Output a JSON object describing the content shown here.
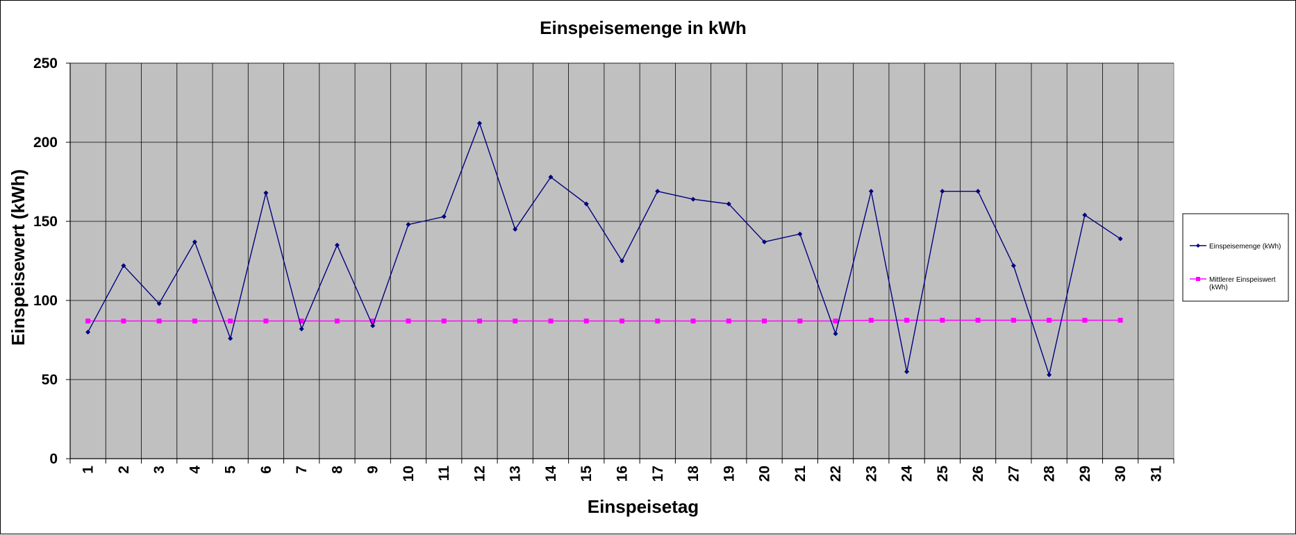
{
  "chart_data": {
    "type": "line",
    "title": "Einspeisemenge in kWh",
    "xlabel": "Einspeisetag",
    "ylabel": "Einspeisewert  (kWh)",
    "ylim": [
      0,
      250
    ],
    "yticks": [
      "0",
      "50",
      "100",
      "150",
      "200",
      "250"
    ],
    "categories": [
      "1",
      "2",
      "3",
      "4",
      "5",
      "6",
      "7",
      "8",
      "9",
      "10",
      "11",
      "12",
      "13",
      "14",
      "15",
      "16",
      "17",
      "18",
      "19",
      "20",
      "21",
      "22",
      "23",
      "24",
      "25",
      "26",
      "27",
      "28",
      "29",
      "30",
      "31"
    ],
    "grid": "on",
    "plot_background": "#c0c0c0",
    "legend_position": "right",
    "series": [
      {
        "name": "Einspeisemenge (kWh)",
        "color": "#000080",
        "marker": "diamond",
        "values": [
          80,
          122,
          98,
          137,
          76,
          168,
          82,
          135,
          84,
          148,
          153,
          212,
          145,
          178,
          161,
          125,
          169,
          164,
          161,
          137,
          142,
          79,
          169,
          55,
          169,
          169,
          122,
          53,
          154,
          139,
          null
        ]
      },
      {
        "name": "Mittlerer Einspeiswert (kWh)",
        "legend_lines": [
          "Mittlerer Einspeiswert",
          "(kWh)"
        ],
        "color": "#ff00ff",
        "marker": "square",
        "values": [
          87,
          87,
          87,
          87,
          87,
          87,
          87,
          87,
          87,
          87,
          87,
          87,
          87,
          87,
          87,
          87,
          87,
          87,
          87,
          87,
          87,
          87,
          87.5,
          87.5,
          87.5,
          87.5,
          87.5,
          87.5,
          87.5,
          87.5,
          null
        ]
      }
    ]
  }
}
